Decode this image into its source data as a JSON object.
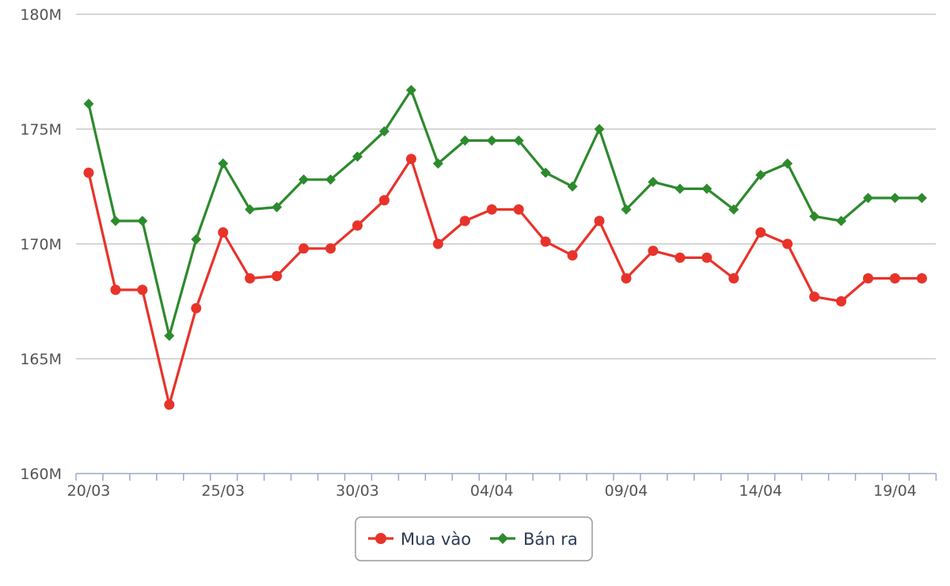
{
  "chart_data": {
    "type": "line",
    "x": [
      "20/03",
      "21/03",
      "22/03",
      "23/03",
      "24/03",
      "25/03",
      "26/03",
      "27/03",
      "28/03",
      "29/03",
      "30/03",
      "31/03",
      "01/04",
      "02/04",
      "03/04",
      "04/04",
      "05/04",
      "06/04",
      "07/04",
      "08/04",
      "09/04",
      "10/04",
      "11/04",
      "12/04",
      "13/04",
      "14/04",
      "15/04",
      "16/04",
      "17/04",
      "18/04",
      "19/04",
      "20/04"
    ],
    "x_tick_labels": [
      "20/03",
      "25/03",
      "30/03",
      "04/04",
      "09/04",
      "14/04",
      "19/04"
    ],
    "y_tick_labels": [
      "160M",
      "165M",
      "170M",
      "175M",
      "180M"
    ],
    "ylim": [
      160,
      180
    ],
    "y_unit": "M",
    "grid": "horizontal",
    "legend_position": "bottom-center",
    "series": [
      {
        "name": "Mua vào",
        "color": "#e8332a",
        "marker": "circle",
        "values": [
          173.1,
          168.0,
          168.0,
          163.0,
          167.2,
          170.5,
          168.5,
          168.6,
          169.8,
          169.8,
          170.8,
          171.9,
          173.7,
          170.0,
          171.0,
          171.5,
          171.5,
          170.1,
          169.5,
          171.0,
          168.5,
          169.7,
          169.4,
          169.4,
          168.5,
          170.5,
          170.0,
          167.7,
          167.5,
          168.5,
          168.5,
          168.5
        ]
      },
      {
        "name": "Bán ra",
        "color": "#2d8a2d",
        "marker": "diamond",
        "values": [
          176.1,
          171.0,
          171.0,
          166.0,
          170.2,
          173.5,
          171.5,
          171.6,
          172.8,
          172.8,
          173.8,
          174.9,
          176.7,
          173.5,
          174.5,
          174.5,
          174.5,
          173.1,
          172.5,
          175.0,
          171.5,
          172.7,
          172.4,
          172.4,
          171.5,
          173.0,
          173.5,
          171.2,
          171.0,
          172.0,
          172.0,
          172.0
        ]
      }
    ]
  }
}
